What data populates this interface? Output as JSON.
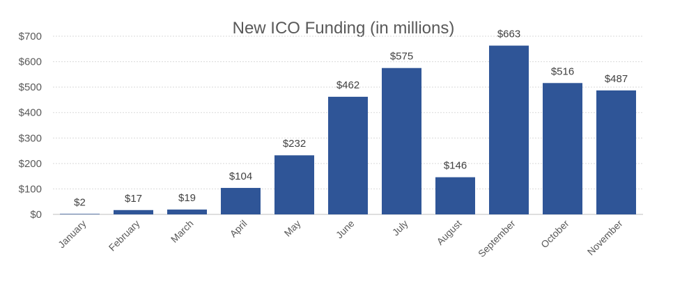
{
  "chart_data": {
    "type": "bar",
    "title": "New ICO Funding (in millions)",
    "xlabel": "",
    "ylabel": "",
    "categories": [
      "January",
      "February",
      "March",
      "April",
      "May",
      "June",
      "July",
      "August",
      "September",
      "October",
      "November"
    ],
    "values": [
      2,
      17,
      19,
      104,
      232,
      462,
      575,
      146,
      663,
      516,
      487
    ],
    "data_labels": [
      "$2",
      "$17",
      "$19",
      "$104",
      "$232",
      "$462",
      "$575",
      "$146",
      "$663",
      "$516",
      "$487"
    ],
    "ylim": [
      0,
      700
    ],
    "yticks": [
      0,
      100,
      200,
      300,
      400,
      500,
      600,
      700
    ],
    "ytick_labels": [
      "$0",
      "$100",
      "$200",
      "$300",
      "$400",
      "$500",
      "$600",
      "$700"
    ],
    "grid": true,
    "legend": "none",
    "colors": {
      "bar": "#2F5597",
      "grid": "#D9D9D9",
      "axis": "#BFBFBF",
      "text": "#595959"
    }
  }
}
